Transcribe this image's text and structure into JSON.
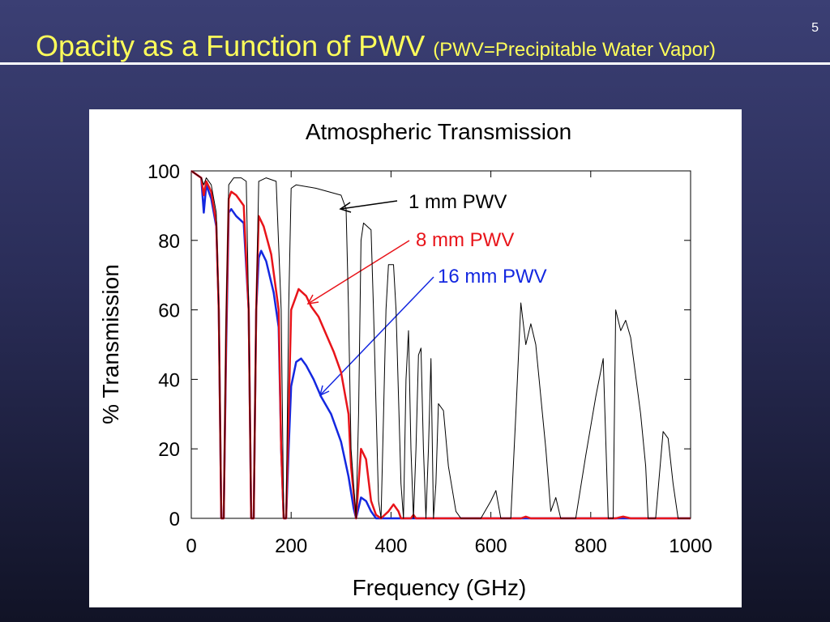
{
  "slide": {
    "title": "Opacity as a Function of PWV",
    "subtitle": "(PWV=Precipitable Water Vapor)",
    "page_number": "5"
  },
  "chart_data": {
    "type": "line",
    "title": "Atmospheric Transmission",
    "x_label": "Frequency (GHz)",
    "y_label": "% Transmission",
    "xlim": [
      0,
      1000
    ],
    "xticks": [
      0,
      200,
      400,
      600,
      800,
      1000
    ],
    "ylim": [
      0,
      100
    ],
    "yticks": [
      0,
      20,
      40,
      60,
      80,
      100
    ],
    "series": [
      {
        "name": "1 mm PWV",
        "color": "#000000",
        "x": [
          0,
          20,
          25,
          30,
          40,
          50,
          55,
          60,
          65,
          70,
          75,
          85,
          100,
          110,
          115,
          120,
          125,
          130,
          135,
          150,
          170,
          180,
          185,
          190,
          195,
          200,
          210,
          250,
          300,
          310,
          315,
          320,
          330,
          335,
          340,
          345,
          360,
          365,
          375,
          380,
          385,
          390,
          395,
          405,
          410,
          420,
          425,
          430,
          435,
          440,
          445,
          450,
          455,
          460,
          465,
          470,
          475,
          480,
          485,
          490,
          495,
          505,
          515,
          530,
          540,
          580,
          600,
          610,
          620,
          640,
          650,
          660,
          670,
          680,
          690,
          710,
          720,
          730,
          740,
          770,
          790,
          810,
          825,
          835,
          845,
          850,
          860,
          870,
          880,
          900,
          910,
          915,
          930,
          945,
          955,
          965,
          975,
          1000
        ],
        "values": [
          100,
          98,
          96,
          98,
          96,
          88,
          60,
          0,
          0,
          60,
          96,
          98,
          98,
          97,
          60,
          0,
          0,
          60,
          97,
          98,
          97,
          60,
          0,
          0,
          60,
          95,
          96,
          95,
          93,
          89,
          60,
          20,
          0,
          30,
          80,
          85,
          83,
          60,
          5,
          0,
          30,
          60,
          73,
          73,
          60,
          10,
          0,
          40,
          54,
          20,
          0,
          20,
          47,
          49,
          20,
          0,
          20,
          46,
          0,
          10,
          33,
          31,
          15,
          2,
          0,
          0,
          5,
          8,
          0,
          0,
          30,
          62,
          50,
          56,
          50,
          20,
          2,
          6,
          0,
          0,
          18,
          35,
          46,
          0,
          0,
          60,
          54,
          57,
          52,
          30,
          15,
          0,
          0,
          25,
          23,
          10,
          0,
          0
        ]
      },
      {
        "name": "8 mm PWV",
        "color": "#e8141a",
        "x": [
          0,
          20,
          25,
          30,
          40,
          50,
          55,
          60,
          65,
          70,
          75,
          80,
          90,
          105,
          115,
          120,
          125,
          130,
          135,
          145,
          160,
          175,
          180,
          185,
          190,
          195,
          200,
          210,
          215,
          230,
          240,
          255,
          270,
          285,
          300,
          315,
          320,
          330,
          340,
          350,
          360,
          370,
          380,
          395,
          405,
          415,
          420,
          440,
          445,
          450,
          660,
          670,
          680,
          850,
          865,
          880,
          1000
        ],
        "values": [
          100,
          98,
          93,
          97,
          94,
          85,
          60,
          0,
          0,
          55,
          92,
          94,
          93,
          90,
          60,
          0,
          0,
          60,
          87,
          84,
          76,
          60,
          20,
          0,
          0,
          30,
          60,
          64,
          66,
          64,
          61,
          58,
          53,
          48,
          42,
          30,
          15,
          0,
          20,
          17,
          5,
          1,
          0,
          2,
          4,
          2,
          0,
          0,
          1,
          0,
          0,
          0.5,
          0,
          0,
          0.5,
          0,
          0
        ]
      },
      {
        "name": "16 mm PWV",
        "color": "#1428e0",
        "x": [
          0,
          20,
          25,
          30,
          40,
          50,
          55,
          60,
          65,
          70,
          75,
          80,
          90,
          105,
          115,
          120,
          125,
          130,
          135,
          140,
          150,
          165,
          175,
          180,
          185,
          190,
          195,
          200,
          210,
          220,
          230,
          245,
          260,
          280,
          300,
          315,
          325,
          330,
          340,
          350,
          360,
          370,
          1000
        ],
        "values": [
          100,
          98,
          88,
          96,
          92,
          84,
          60,
          0,
          0,
          50,
          88,
          89,
          87,
          85,
          60,
          0,
          0,
          60,
          75,
          77,
          74,
          65,
          55,
          20,
          0,
          0,
          20,
          38,
          45,
          46,
          44,
          40,
          35,
          30,
          22,
          12,
          3,
          0,
          6,
          5,
          2,
          0,
          0
        ]
      }
    ]
  }
}
